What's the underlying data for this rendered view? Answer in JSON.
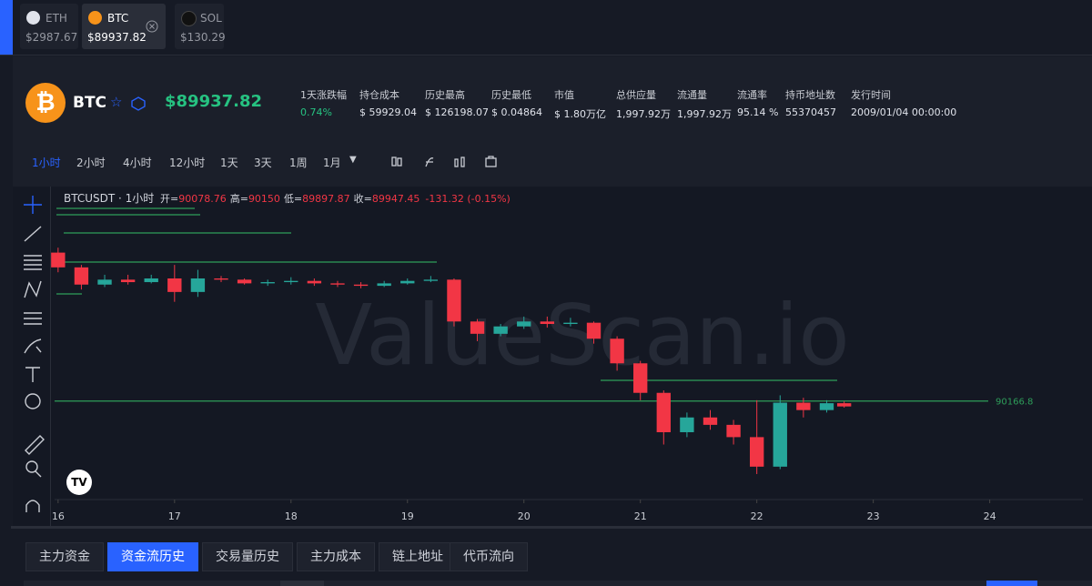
{
  "tabs": [
    {
      "symbol": "ETH",
      "price": "$2987.67"
    },
    {
      "symbol": "BTC",
      "price": "$89937.82"
    },
    {
      "symbol": "SOL",
      "price": "$130.29"
    }
  ],
  "header": {
    "symbol": "BTC",
    "price": "$89937.82",
    "stats": [
      {
        "label": "1天涨跌幅",
        "value": "0.74%"
      },
      {
        "label": "持仓成本",
        "value": "$ 59929.04"
      },
      {
        "label": "历史最高",
        "value": "$ 126198.07"
      },
      {
        "label": "历史最低",
        "value": "$ 0.04864"
      },
      {
        "label": "市值",
        "value": "$ 1.80万亿"
      },
      {
        "label": "总供应量",
        "value": "1,997.92万"
      },
      {
        "label": "流通量",
        "value": "1,997.92万"
      },
      {
        "label": "流通率",
        "value": "95.14 %"
      },
      {
        "label": "持币地址数",
        "value": "55370457"
      },
      {
        "label": "发行时间",
        "value": "2009/01/04 00:00:00"
      }
    ]
  },
  "timeframes": [
    "1小时",
    "2小时",
    "4小时",
    "12小时",
    "1天",
    "3天",
    "1周",
    "1月"
  ],
  "legend": {
    "pair": "BTCUSDT · 1小时",
    "ohlc": [
      {
        "label": "开=",
        "value": "90078.76"
      },
      {
        "label": "高=",
        "value": "90150"
      },
      {
        "label": "低=",
        "value": "89897.87"
      },
      {
        "label": "收=",
        "value": "89947.45"
      }
    ],
    "change": "-131.32 (-0.15%)"
  },
  "watermark": "ValueScan.io",
  "chart_data": {
    "type": "candlestick",
    "x": [
      16.0,
      16.2,
      16.4,
      16.6,
      16.8,
      17.0,
      17.2,
      17.4,
      17.6,
      17.8,
      18.0,
      18.2,
      18.4,
      18.6,
      18.8,
      19.0,
      19.2,
      19.4,
      19.6,
      19.8,
      20.0,
      20.2,
      20.4,
      20.6,
      20.8,
      21.0,
      21.2,
      21.4,
      21.6,
      21.8,
      22.0,
      22.2,
      22.4,
      22.6,
      22.75
    ],
    "open": [
      96200,
      95600,
      94900,
      95100,
      95000,
      95150,
      94600,
      95150,
      95100,
      94950,
      95000,
      95050,
      94950,
      94900,
      94850,
      94950,
      95050,
      95100,
      93400,
      92900,
      93200,
      93400,
      93300,
      93350,
      92700,
      91700,
      90500,
      88900,
      89500,
      89200,
      88700,
      87500,
      90100,
      89800,
      90078.76
    ],
    "high": [
      96400,
      95700,
      95300,
      95300,
      95300,
      95700,
      95500,
      95250,
      95150,
      95100,
      95200,
      95150,
      95050,
      95000,
      95050,
      95150,
      95250,
      95150,
      93500,
      93300,
      93600,
      93600,
      93550,
      93400,
      92800,
      91800,
      90600,
      89700,
      89800,
      89400,
      90200,
      90400,
      90300,
      90200,
      90150
    ],
    "low": [
      95400,
      94700,
      94800,
      94900,
      94950,
      94200,
      94400,
      95000,
      94900,
      94850,
      94900,
      94850,
      94800,
      94750,
      94800,
      94900,
      95000,
      93200,
      92600,
      92800,
      93100,
      93150,
      93200,
      92500,
      91400,
      90200,
      88400,
      88700,
      89000,
      88400,
      87200,
      87400,
      89500,
      89700,
      89897.87
    ],
    "close": [
      95600,
      94900,
      95100,
      95000,
      95150,
      94600,
      95150,
      95100,
      94950,
      95000,
      95050,
      94950,
      94900,
      94850,
      94950,
      95050,
      95100,
      93400,
      92900,
      93200,
      93400,
      93300,
      93350,
      92700,
      91700,
      90500,
      88900,
      89500,
      89200,
      88700,
      87500,
      90100,
      89800,
      90078.76,
      89947.45
    ],
    "up_color": "#26a69a",
    "down_color": "#f23645",
    "xlim": [
      15.97,
      24.8
    ],
    "xticks": [
      16,
      17,
      18,
      19,
      20,
      21,
      22,
      23,
      24
    ],
    "ylim": [
      86200,
      98700
    ],
    "price_line": 90166.8,
    "price_line_color": "#2e9e5a"
  },
  "bottom_tabs": [
    "主力资金",
    "资金流历史",
    "交易量历史",
    "主力成本",
    "链上地址",
    "代币流向"
  ]
}
